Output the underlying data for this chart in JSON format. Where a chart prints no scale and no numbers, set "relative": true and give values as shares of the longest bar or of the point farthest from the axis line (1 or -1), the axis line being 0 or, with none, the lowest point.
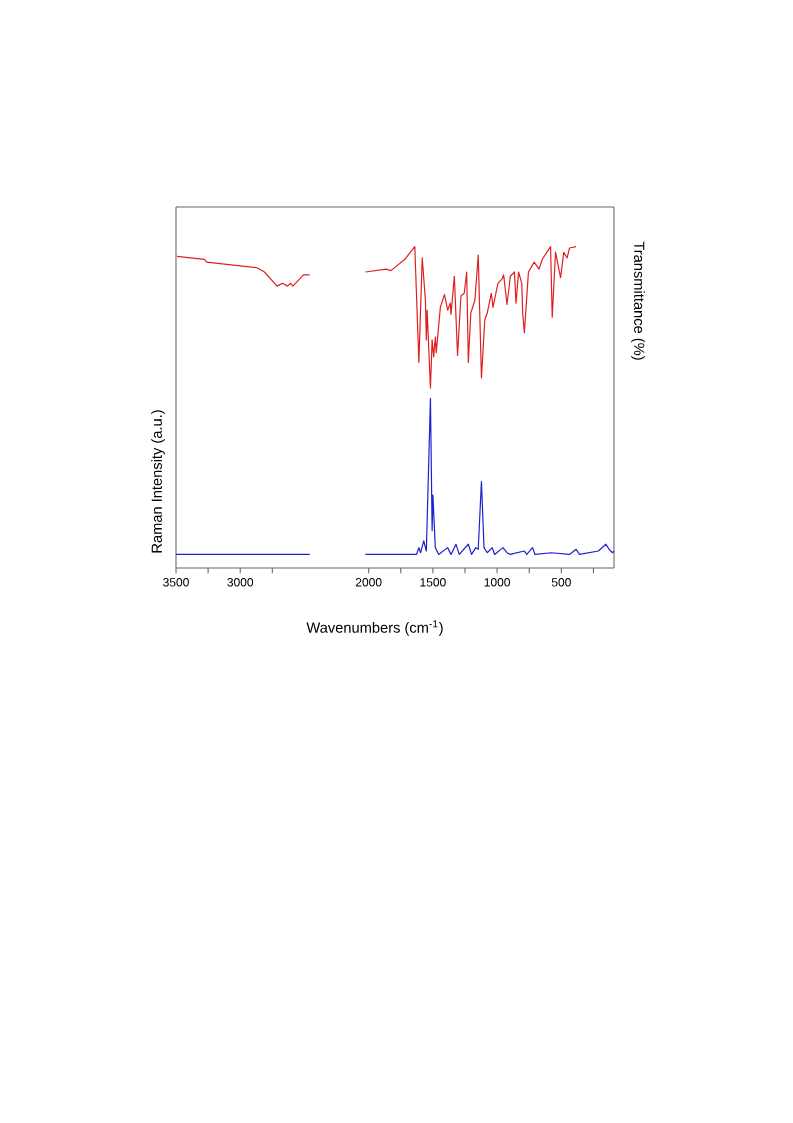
{
  "chart_data": [
    {
      "type": "line",
      "relative": true,
      "y2label": "Transmittance (%)",
      "xlim": [
        3500,
        90
      ],
      "color": "#e02020",
      "x": [
        3492,
        3279,
        3262,
        2869,
        2811,
        2713,
        2672,
        2631,
        2607,
        2590,
        2508,
        2459,
        2300,
        2026,
        1865,
        1827,
        1718,
        1641,
        1609,
        1583,
        1558,
        1551,
        1545,
        1519,
        1506,
        1494,
        1481,
        1474,
        1442,
        1410,
        1385,
        1365,
        1359,
        1333,
        1308,
        1282,
        1256,
        1237,
        1224,
        1205,
        1173,
        1147,
        1122,
        1096,
        1077,
        1045,
        1032,
        994,
        962,
        949,
        923,
        897,
        865,
        853,
        833,
        808,
        801,
        788,
        756,
        712,
        673,
        648,
        584,
        571,
        545,
        506,
        481,
        455,
        436,
        385
      ],
      "values": [
        0.93,
        0.91,
        0.89,
        0.85,
        0.82,
        0.72,
        0.74,
        0.72,
        0.74,
        0.72,
        0.8,
        0.8,
        null,
        0.82,
        0.84,
        0.83,
        0.91,
        1.0,
        0.18,
        0.92,
        0.62,
        0.34,
        0.55,
        0,
        0.34,
        0.22,
        0.36,
        0.25,
        0.57,
        0.66,
        0.55,
        0.6,
        0.52,
        0.79,
        0.23,
        0.65,
        0.67,
        0.82,
        0.18,
        0.53,
        0.62,
        0.94,
        0.07,
        0.48,
        0.53,
        0.67,
        0.57,
        0.74,
        0.77,
        0.8,
        0.59,
        0.79,
        0.82,
        0.6,
        0.82,
        0.74,
        0.53,
        0.39,
        0.82,
        0.89,
        0.84,
        0.91,
        1.0,
        0.5,
        0.96,
        0.78,
        0.96,
        0.92,
        0.99,
        1.0
      ]
    },
    {
      "type": "line",
      "relative": true,
      "ylabel": "Raman Intensity (a.u.)",
      "xlabel": "Wavenumbers (cm$^{-1}$)",
      "xlim": [
        3500,
        90
      ],
      "color": "#2020d0",
      "xticks": [
        3500,
        {
          "value": 3250,
          "label": null
        },
        3000,
        {
          "value": 2750,
          "label": null
        },
        2000,
        {
          "value": 1750,
          "label": null
        },
        1500,
        {
          "value": 1250,
          "label": null
        },
        1000,
        {
          "value": 750,
          "label": null
        },
        500,
        {
          "value": 250,
          "label": null
        }
      ],
      "x": [
        3500,
        3000,
        2459,
        2300,
        2026,
        1718,
        1628,
        1609,
        1596,
        1571,
        1551,
        1519,
        1506,
        1500,
        1481,
        1455,
        1385,
        1359,
        1320,
        1295,
        1224,
        1199,
        1166,
        1147,
        1122,
        1102,
        1077,
        1038,
        1019,
        955,
        923,
        898,
        788,
        769,
        724,
        705,
        577,
        436,
        385,
        359,
        212,
        153,
        128,
        102,
        90
      ],
      "values": [
        0.08,
        0.08,
        0.08,
        null,
        0.08,
        0.08,
        0.08,
        0.12,
        0.09,
        0.16,
        0.1,
        1.0,
        0.22,
        0.43,
        0.12,
        0.08,
        0.12,
        0.08,
        0.14,
        0.08,
        0.14,
        0.08,
        0.12,
        0.11,
        0.51,
        0.12,
        0.09,
        0.12,
        0.08,
        0.12,
        0.09,
        0.08,
        0.1,
        0.08,
        0.12,
        0.08,
        0.09,
        0.08,
        0.11,
        0.08,
        0.1,
        0.14,
        0.11,
        0.09,
        0.1
      ]
    }
  ]
}
